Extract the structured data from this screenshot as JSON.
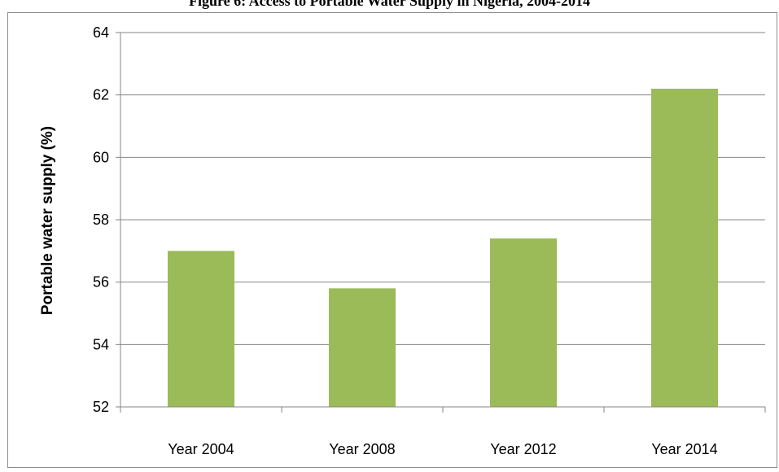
{
  "chart_data": {
    "type": "bar",
    "title": "Figure 6: Access to Portable Water Supply in Nigeria, 2004-2014",
    "xlabel": "",
    "ylabel": "Portable water supply (%)",
    "categories": [
      "Year 2004",
      "Year 2008",
      "Year 2012",
      "Year 2014"
    ],
    "values": [
      57.0,
      55.8,
      57.4,
      62.2
    ],
    "ylim": [
      52,
      64
    ],
    "yticks": [
      52,
      54,
      56,
      58,
      60,
      62,
      64
    ],
    "grid": true,
    "bar_color": "#9bbb59",
    "legend": "none"
  }
}
